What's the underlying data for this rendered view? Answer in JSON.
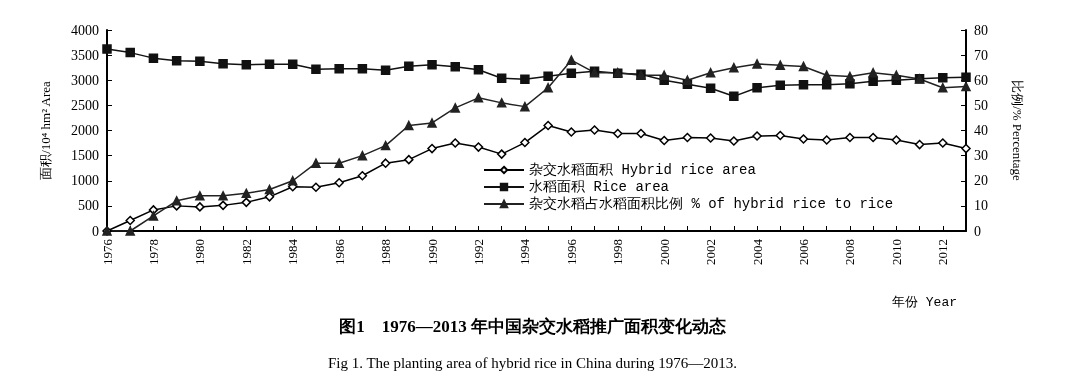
{
  "chart_data": {
    "type": "line",
    "title": "图1　1976—2013 年中国杂交水稻推广面积变化动态",
    "subtitle": "Fig 1. The planting area of hybrid rice in China during 1976—2013.",
    "xlabel": "年份 Year",
    "ylabel": "面积/10⁴ hm² Area",
    "y2label": "比例/% Percentage",
    "x": [
      1976,
      1977,
      1978,
      1979,
      1980,
      1981,
      1982,
      1983,
      1984,
      1985,
      1986,
      1987,
      1988,
      1989,
      1990,
      1991,
      1992,
      1993,
      1994,
      1995,
      1996,
      1997,
      1998,
      1999,
      2000,
      2001,
      2002,
      2003,
      2004,
      2005,
      2006,
      2007,
      2008,
      2009,
      2010,
      2011,
      2012,
      2013
    ],
    "xlim": [
      1976,
      2013
    ],
    "xticks": [
      1976,
      {
        "value": 1977,
        "label": null
      },
      1978,
      {
        "value": 1979,
        "label": null
      },
      1980,
      {
        "value": 1981,
        "label": null
      },
      1982,
      {
        "value": 1983,
        "label": null
      },
      1984,
      {
        "value": 1985,
        "label": null
      },
      1986,
      {
        "value": 1987,
        "label": null
      },
      1988,
      {
        "value": 1989,
        "label": null
      },
      1990,
      {
        "value": 1991,
        "label": null
      },
      1992,
      {
        "value": 1993,
        "label": null
      },
      1994,
      {
        "value": 1995,
        "label": null
      },
      1996,
      {
        "value": 1997,
        "label": null
      },
      1998,
      {
        "value": 1999,
        "label": null
      },
      2000,
      {
        "value": 2001,
        "label": null
      },
      2002,
      {
        "value": 2003,
        "label": null
      },
      2004,
      {
        "value": 2005,
        "label": null
      },
      2006,
      {
        "value": 2007,
        "label": null
      },
      2008,
      {
        "value": 2009,
        "label": null
      },
      2010,
      {
        "value": 2011,
        "label": null
      },
      2012,
      {
        "value": 2013,
        "label": null
      }
    ],
    "ylim": [
      0,
      4000
    ],
    "yticks": [
      0,
      500,
      1000,
      1500,
      2000,
      2500,
      3000,
      3500,
      4000
    ],
    "y2lim": [
      0,
      80
    ],
    "y2ticks": [
      0,
      10,
      20,
      30,
      40,
      50,
      60,
      70,
      80
    ],
    "grid": false,
    "legend": "bottom right",
    "line_style": "solid",
    "series": [
      {
        "name": "杂交水稻面积 Hybrid rice area",
        "color": "#000000",
        "marker": "diamond",
        "values": [
          0,
          210,
          420,
          500,
          480,
          510,
          570,
          680,
          880,
          870,
          960,
          1100,
          1350,
          1420,
          1640,
          1750,
          1670,
          1530,
          1760,
          2100,
          1970,
          2010,
          1940,
          1940,
          1800,
          1860,
          1850,
          1790,
          1890,
          1900,
          1830,
          1810,
          1860,
          1860,
          1810,
          1720,
          1750,
          1640
        ]
      },
      {
        "name": "水稻面积 Rice area",
        "color": "#111111",
        "marker": "square",
        "values": [
          3620,
          3550,
          3440,
          3390,
          3380,
          3330,
          3310,
          3320,
          3320,
          3220,
          3230,
          3230,
          3200,
          3280,
          3310,
          3270,
          3210,
          3040,
          3020,
          3080,
          3140,
          3180,
          3140,
          3120,
          3000,
          2920,
          2840,
          2680,
          2850,
          2900,
          2910,
          2910,
          2930,
          2980,
          3000,
          3030,
          3050,
          3060
        ]
      },
      {
        "name": "杂交水稻占水稻面积比例 % of hybrid rice to rice",
        "color": "#222222",
        "marker": "triangle",
        "axis": "y2",
        "values": [
          0,
          0,
          6,
          12,
          14,
          14,
          15,
          16.5,
          20,
          27,
          27,
          30,
          34,
          42,
          43,
          49,
          53,
          51,
          49.5,
          57,
          68,
          63,
          63,
          62,
          62,
          60,
          63,
          65,
          66.5,
          66,
          65.5,
          62,
          61.5,
          63,
          62,
          60.5,
          57,
          57.5
        ]
      }
    ]
  }
}
